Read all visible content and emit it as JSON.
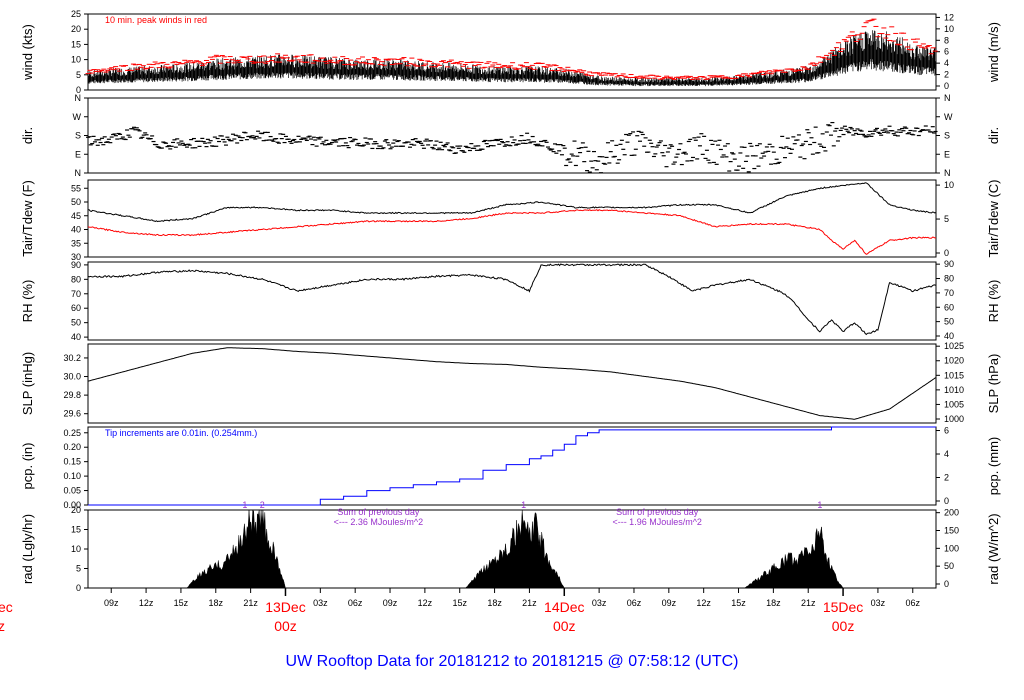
{
  "footer_title": "UW Rooftop Data for 20181212  to  20181215 @ 07:58:12  (UTC)",
  "x_axis": {
    "hour_labels": [
      "09z",
      "12z",
      "15z",
      "18z",
      "21z",
      "03z",
      "06z",
      "09z",
      "12z",
      "15z",
      "18z",
      "21z",
      "03z",
      "06z",
      "09z",
      "12z",
      "15z",
      "18z",
      "21z",
      "03z",
      "06z"
    ],
    "hour_labels_hours": [
      9,
      12,
      15,
      18,
      21,
      27,
      30,
      33,
      36,
      39,
      42,
      45,
      51,
      54,
      57,
      60,
      63,
      66,
      69,
      75,
      78
    ],
    "day_labels": [
      {
        "day": "13Dec",
        "time": "00z",
        "hour": 24
      },
      {
        "day": "14Dec",
        "time": "00z",
        "hour": 48
      },
      {
        "day": "15Dec",
        "time": "00z",
        "hour": 72
      }
    ],
    "start_hour": 7,
    "end_hour": 80,
    "cutoff_day": "ec",
    "cutoff_time": "z"
  },
  "colors": {
    "main": "#000000",
    "red": "#ff0000",
    "blue": "#0000ff",
    "purple": "#9932cc",
    "day_label": "#ff0000",
    "footer": "#0000ff"
  },
  "chart_data": [
    {
      "type": "line",
      "name": "wind",
      "ylabel": "wind (kts)",
      "ylabel_right": "wind (m/s)",
      "ylim": [
        0,
        25
      ],
      "yticks": [
        0,
        5,
        10,
        15,
        20,
        25
      ],
      "yticks_right": [
        0,
        2,
        4,
        6,
        8,
        10,
        12
      ],
      "annotation": "10 min. peak winds in red",
      "series": [
        {
          "name": "",
          "color": "#000000",
          "x": [
            7,
            9,
            12,
            15,
            18,
            21,
            24,
            27,
            30,
            33,
            36,
            39,
            42,
            45,
            48,
            51,
            54,
            57,
            60,
            63,
            66,
            69,
            72,
            74,
            76,
            78,
            80
          ],
          "values": [
            4,
            4.5,
            5,
            5.5,
            6.5,
            7,
            7.5,
            7,
            6.5,
            6.5,
            6,
            5.5,
            5,
            5,
            4.5,
            3,
            2.5,
            2.5,
            2.5,
            3,
            4,
            5,
            10,
            13,
            12,
            10,
            9
          ]
        },
        {
          "name": "",
          "color": "#ff0000",
          "x": [
            7,
            9,
            12,
            15,
            18,
            21,
            24,
            27,
            30,
            33,
            36,
            39,
            42,
            45,
            48,
            51,
            54,
            57,
            60,
            63,
            66,
            69,
            72,
            74,
            76,
            78,
            80
          ],
          "values": [
            6,
            7,
            8,
            8.5,
            10,
            10,
            10.5,
            10,
            9.5,
            9.5,
            9,
            8.5,
            8,
            8,
            7,
            5,
            4.5,
            4,
            4,
            4.5,
            6,
            7.5,
            15,
            21,
            19,
            15,
            13
          ]
        }
      ]
    },
    {
      "type": "scatter",
      "name": "dir",
      "ylabel": "dir.",
      "ylabel_right": "dir.",
      "yticks": [
        "N",
        "E",
        "S",
        "W",
        "N"
      ],
      "yticks_right": [
        "N",
        "E",
        "S",
        "W",
        "N"
      ],
      "ylim": [
        0,
        360
      ],
      "series": [
        {
          "name": "",
          "color": "#000000",
          "x": [
            7,
            9,
            11,
            13,
            15,
            18,
            21,
            24,
            27,
            30,
            33,
            36,
            39,
            42,
            45,
            48,
            51,
            54,
            57,
            60,
            63,
            66,
            69,
            72,
            74,
            76,
            78,
            80
          ],
          "values": [
            150,
            160,
            200,
            140,
            140,
            150,
            180,
            160,
            150,
            145,
            140,
            140,
            115,
            140,
            170,
            105,
            60,
            150,
            90,
            130,
            60,
            100,
            140,
            200,
            195,
            205,
            200,
            205
          ]
        }
      ]
    },
    {
      "type": "line",
      "name": "temperature",
      "ylabel": "Tair/Tdew (F)",
      "ylabel_right": "Tair/Tdew (C)",
      "ylim": [
        30,
        58
      ],
      "yticks": [
        30,
        35,
        40,
        45,
        50,
        55
      ],
      "yticks_right": [
        0,
        5,
        10
      ],
      "series": [
        {
          "name": "",
          "color": "#000000",
          "x": [
            7,
            10,
            13,
            16,
            19,
            22,
            25,
            28,
            31,
            34,
            37,
            40,
            43,
            46,
            49,
            52,
            55,
            58,
            61,
            64,
            67,
            70,
            72,
            74,
            76,
            78,
            80
          ],
          "values": [
            47,
            45,
            43,
            44,
            48,
            48,
            47,
            47,
            46,
            46,
            46,
            46,
            49,
            50,
            48,
            48,
            48,
            49,
            49,
            46,
            52,
            55,
            56,
            57,
            49,
            47,
            46
          ]
        },
        {
          "name": "",
          "color": "#ff0000",
          "x": [
            7,
            10,
            13,
            16,
            19,
            22,
            25,
            28,
            31,
            34,
            37,
            40,
            43,
            46,
            49,
            52,
            55,
            58,
            61,
            64,
            67,
            70,
            71,
            72,
            73,
            74,
            76,
            78,
            80
          ],
          "values": [
            41,
            39,
            38,
            38,
            39,
            40,
            41,
            42,
            43,
            43,
            43,
            44,
            46,
            46,
            47,
            47,
            46,
            45,
            41,
            42,
            42,
            40,
            36,
            33,
            36,
            31,
            36,
            37,
            37
          ]
        }
      ]
    },
    {
      "type": "line",
      "name": "rh",
      "ylabel": "RH (%)",
      "ylabel_right": "RH (%)",
      "ylim": [
        38,
        92
      ],
      "yticks": [
        40,
        50,
        60,
        70,
        80,
        90
      ],
      "yticks_right": [
        40,
        50,
        60,
        70,
        80,
        90
      ],
      "series": [
        {
          "name": "",
          "color": "#000000",
          "x": [
            7,
            10,
            13,
            16,
            19,
            22,
            25,
            28,
            31,
            34,
            37,
            40,
            43,
            45,
            46,
            49,
            52,
            55,
            57,
            59,
            61,
            64,
            67,
            68,
            69,
            70,
            71,
            72,
            73,
            74,
            75,
            76,
            78,
            80
          ],
          "values": [
            82,
            82,
            85,
            86,
            84,
            80,
            72,
            76,
            80,
            80,
            82,
            83,
            80,
            72,
            90,
            90,
            90,
            90,
            82,
            72,
            76,
            80,
            70,
            62,
            52,
            44,
            52,
            44,
            50,
            42,
            45,
            78,
            72,
            76
          ]
        }
      ]
    },
    {
      "type": "line",
      "name": "slp",
      "ylabel": "SLP (inHg)",
      "ylabel_right": "SLP (hPa)",
      "ylim": [
        29.5,
        30.35
      ],
      "yticks": [
        29.6,
        29.8,
        30.0,
        30.2
      ],
      "yticks_right": [
        1000,
        1005,
        1010,
        1015,
        1020,
        1025
      ],
      "series": [
        {
          "name": "",
          "color": "#000000",
          "x": [
            7,
            10,
            13,
            16,
            19,
            22,
            25,
            28,
            31,
            34,
            37,
            40,
            43,
            46,
            49,
            52,
            55,
            58,
            61,
            64,
            67,
            70,
            73,
            76,
            78,
            80
          ],
          "values": [
            29.95,
            30.05,
            30.15,
            30.25,
            30.31,
            30.3,
            30.27,
            30.25,
            30.22,
            30.19,
            30.16,
            30.14,
            30.13,
            30.1,
            30.08,
            30.05,
            30.0,
            29.95,
            29.88,
            29.78,
            29.68,
            29.58,
            29.54,
            29.65,
            29.82,
            29.99
          ]
        }
      ]
    },
    {
      "type": "line",
      "name": "pcp",
      "ylabel": "pcp. (in)",
      "ylabel_right": "pcp. (mm)",
      "ylim": [
        0,
        0.27
      ],
      "yticks": [
        0.0,
        0.05,
        0.1,
        0.15,
        0.2,
        0.25
      ],
      "yticks_right": [
        0,
        2,
        4,
        6
      ],
      "annotation": "Tip increments are 0.01in. (0.254mm.)",
      "series": [
        {
          "name": "",
          "color": "#0000ff",
          "x": [
            7,
            25.5,
            27,
            29,
            31,
            33,
            35,
            37,
            39,
            41,
            43,
            45,
            46,
            47,
            48,
            49,
            50,
            51,
            52,
            53,
            54,
            55,
            62,
            70,
            71,
            72,
            73,
            80
          ],
          "values": [
            0,
            0,
            0.02,
            0.03,
            0.05,
            0.06,
            0.07,
            0.08,
            0.09,
            0.12,
            0.14,
            0.16,
            0.17,
            0.19,
            0.21,
            0.24,
            0.25,
            0.26,
            0.26,
            0.26,
            0.26,
            0.26,
            0.26,
            0.26,
            0.27,
            0.27,
            0.27,
            0.27
          ]
        }
      ]
    },
    {
      "type": "area",
      "name": "radiation",
      "ylabel": "rad (Lgly/hr)",
      "ylabel_right": "rad (W/m^2)",
      "ylim": [
        0,
        20
      ],
      "yticks": [
        0,
        5,
        10,
        15,
        20
      ],
      "yticks_right": [
        0,
        50,
        100,
        150,
        200
      ],
      "annotations": [
        {
          "text": "1",
          "hour": 20.5
        },
        {
          "text": "2",
          "hour": 22.0
        },
        {
          "text": "1",
          "hour": 44.5
        },
        {
          "text": "1",
          "hour": 70.0
        },
        {
          "text": "Sum of previous day",
          "hour": 32.0,
          "line": 1
        },
        {
          "text": "<--- 2.36 MJoules/m^2",
          "hour": 32.0,
          "line": 2
        },
        {
          "text": "Sum of previous day",
          "hour": 56.0,
          "line": 1
        },
        {
          "text": "<--- 1.96 MJoules/m^2",
          "hour": 56.0,
          "line": 2
        }
      ],
      "series": [
        {
          "name": "",
          "color": "#000000",
          "x": [
            15.5,
            16.5,
            17.5,
            18.5,
            19.5,
            20.5,
            21,
            21.5,
            22,
            22.5,
            23.5,
            24,
            39.5,
            40.5,
            41.5,
            42.5,
            43.5,
            44.5,
            45,
            45.5,
            46.5,
            47.5,
            48,
            63.5,
            64.5,
            65.5,
            66.5,
            67.5,
            68,
            68.5,
            69.5,
            70,
            70.5,
            71.5,
            72
          ],
          "values": [
            0,
            3,
            5,
            6,
            9,
            14,
            19,
            16,
            18,
            13,
            5,
            0,
            0,
            3,
            6,
            9,
            12,
            17,
            13,
            16,
            8,
            3,
            0,
            0,
            2,
            4,
            6,
            8,
            6,
            9,
            10,
            17,
            8,
            2,
            0
          ]
        }
      ]
    }
  ]
}
